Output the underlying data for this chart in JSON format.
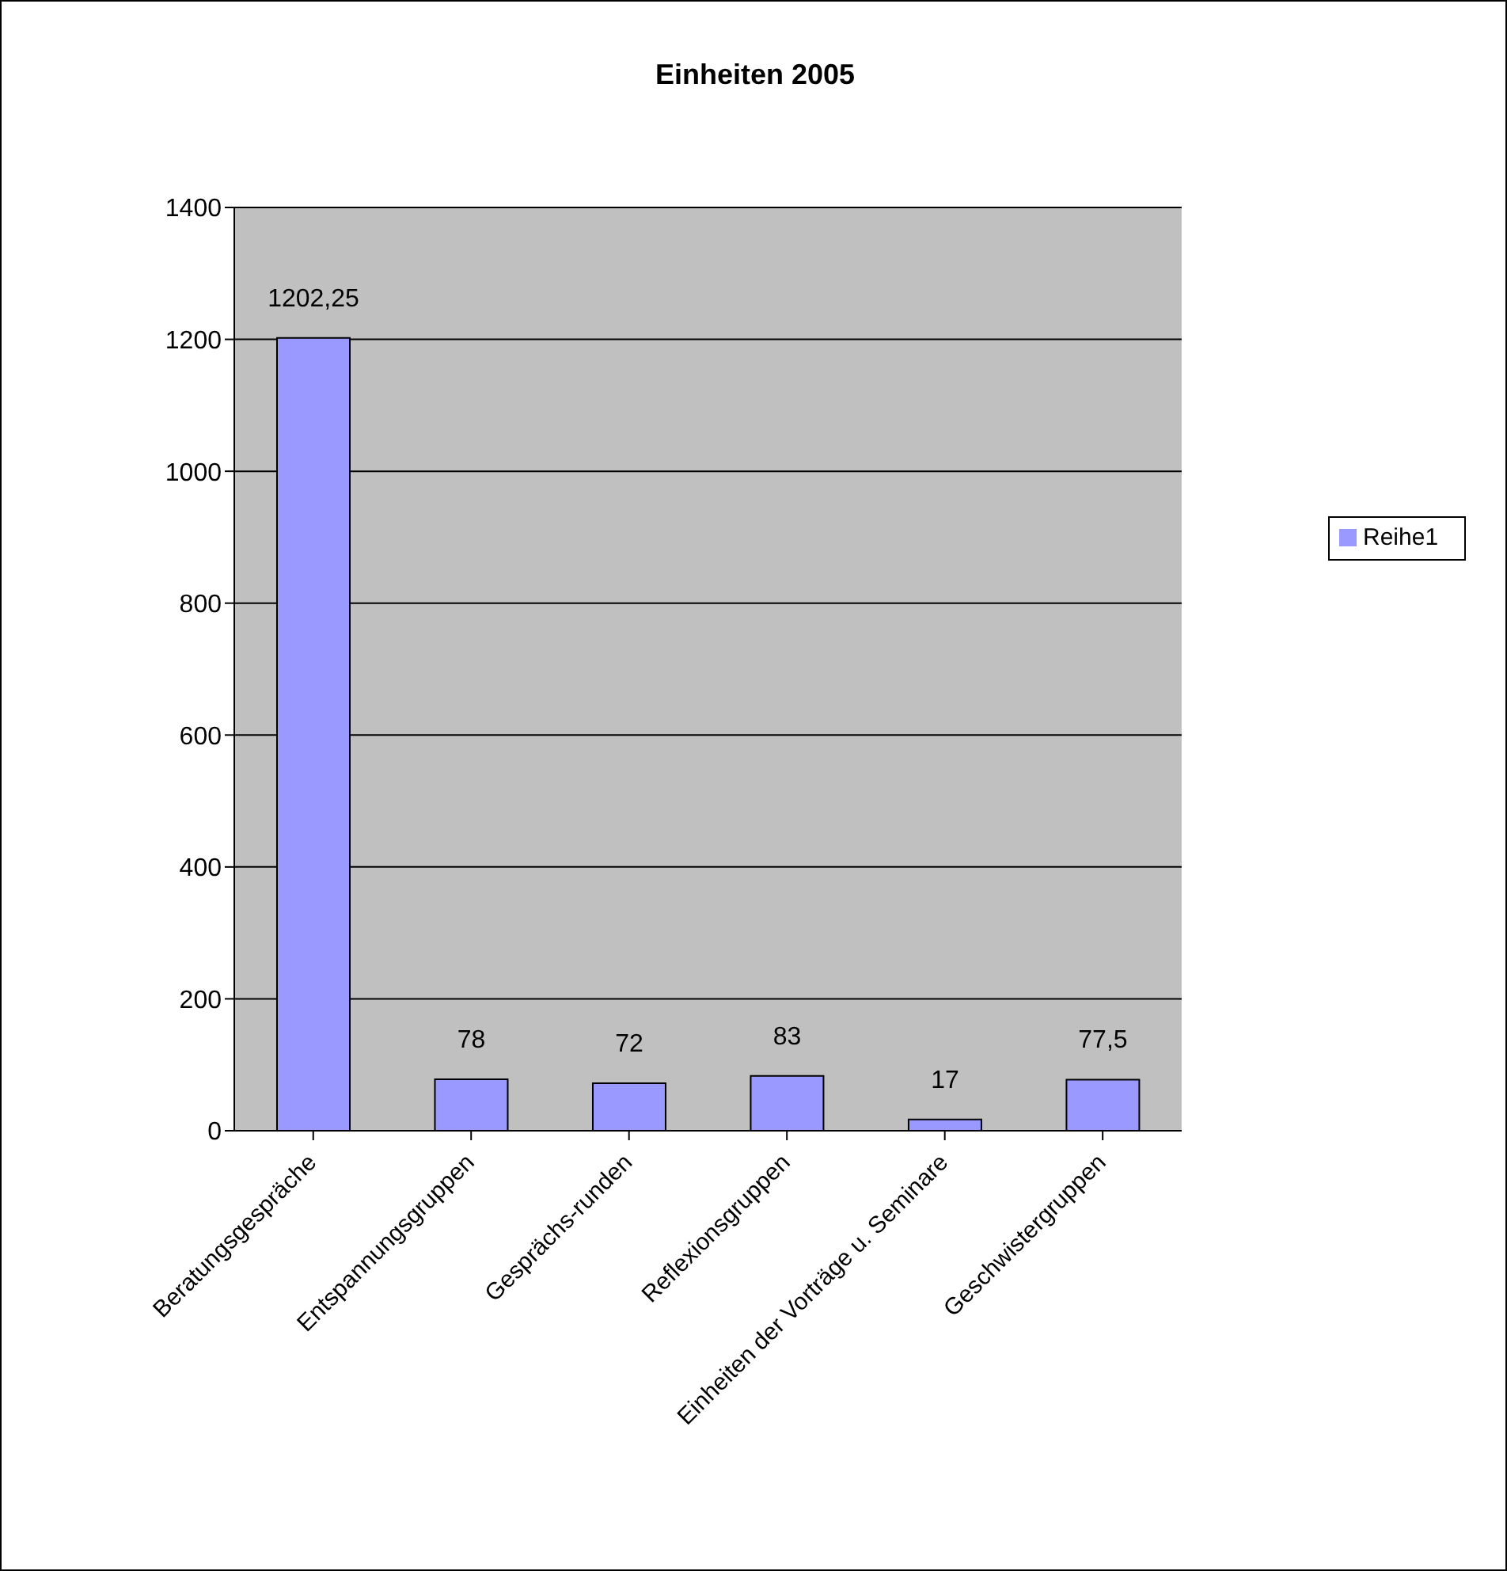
{
  "chart_data": {
    "type": "bar",
    "title": "Einheiten 2005",
    "categories": [
      "Beratungsgespräche",
      "Entspannungsgruppen",
      "Gesprächs-runden",
      "Reflexionsgruppen",
      "Einheiten der Vorträge u. Seminare",
      "Geschwistergruppen"
    ],
    "series": [
      {
        "name": "Reihe1",
        "color": "#9999ff",
        "values": [
          1202.25,
          78,
          72,
          83,
          17,
          77.5
        ],
        "value_labels": [
          "1202,25",
          "78",
          "72",
          "83",
          "17",
          "77,5"
        ]
      }
    ],
    "ylim": [
      0,
      1400
    ],
    "yticks": [
      0,
      200,
      400,
      600,
      800,
      1000,
      1200,
      1400
    ],
    "grid": "y",
    "legend": "right"
  }
}
